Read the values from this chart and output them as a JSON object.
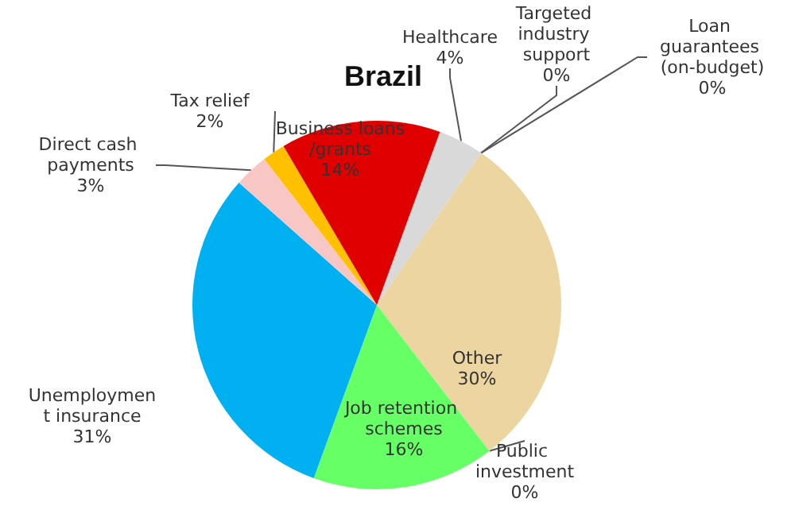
{
  "chart_data": {
    "type": "pie",
    "title": "Brazil",
    "categories": [
      "Healthcare",
      "Targeted industry support",
      "Loan guarantees (on-budget)",
      "Other",
      "Public investment",
      "Job retention schemes",
      "Unemployment insurance",
      "Direct cash payments",
      "Tax relief",
      "Business loans/grants"
    ],
    "values": [
      4,
      0,
      0,
      30,
      0,
      16,
      31,
      3,
      2,
      14
    ],
    "value_labels": [
      "4%",
      "0%",
      "0%",
      "30%",
      "0%",
      "16%",
      "31%",
      "3%",
      "2%",
      "14%"
    ],
    "colors": [
      "#d9d9d9",
      "#bfbfbf",
      "#a6a6a6",
      "#ecd5a0",
      "#7f7f7f",
      "#66ff66",
      "#00b0f0",
      "#f9c6c6",
      "#ffc000",
      "#e00000"
    ]
  }
}
